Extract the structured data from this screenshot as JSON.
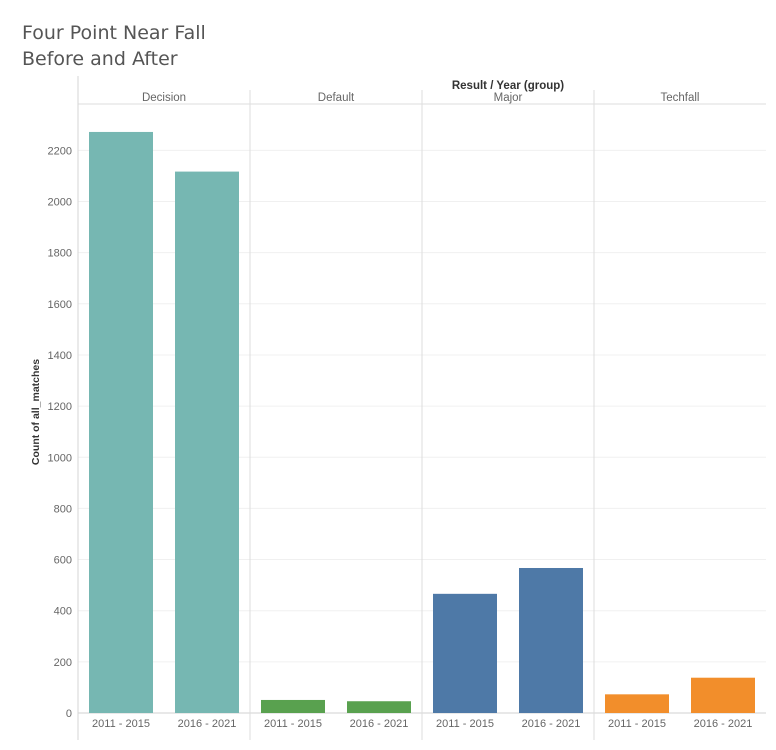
{
  "title_line1": "Four Point Near Fall",
  "title_line2": "Before and After",
  "chart_data": {
    "type": "bar",
    "column_header": "Result / Year (group)",
    "ylabel": "Count of all_matches",
    "ylim": [
      0,
      2350
    ],
    "yticks": [
      0,
      200,
      400,
      600,
      800,
      1000,
      1200,
      1400,
      1600,
      1800,
      2000,
      2200
    ],
    "gridlines": true,
    "panels": [
      {
        "result": "Decision",
        "color": "#76b7b2",
        "categories": [
          "2011 - 2015",
          "2016 - 2021"
        ],
        "values": [
          2272,
          2117
        ]
      },
      {
        "result": "Default",
        "color": "#59a14f",
        "categories": [
          "2011 - 2015",
          "2016 - 2021"
        ],
        "values": [
          51,
          46
        ]
      },
      {
        "result": "Major",
        "color": "#4e79a7",
        "categories": [
          "2011 - 2015",
          "2016 - 2021"
        ],
        "values": [
          466,
          567
        ]
      },
      {
        "result": "Techfall",
        "color": "#f28e2b",
        "categories": [
          "2011 - 2015",
          "2016 - 2021"
        ],
        "values": [
          73,
          138
        ]
      }
    ]
  }
}
